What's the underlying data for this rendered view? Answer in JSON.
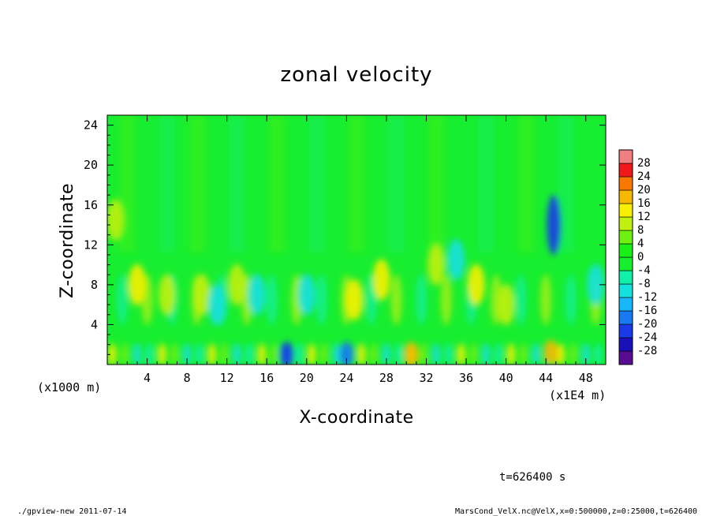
{
  "chart_data": {
    "type": "heatmap",
    "title": "zonal velocity",
    "xlabel": "X-coordinate",
    "ylabel": "Z-coordinate",
    "x_unit_left": "(x1000 m)",
    "x_unit_right": "(x1E4 m)",
    "x_ticks": [
      "4",
      "8",
      "12",
      "16",
      "20",
      "24",
      "28",
      "32",
      "36",
      "40",
      "44",
      "48"
    ],
    "x_tick_values": [
      4,
      8,
      12,
      16,
      20,
      24,
      28,
      32,
      36,
      40,
      44,
      48
    ],
    "xlim": [
      0,
      50
    ],
    "y_ticks": [
      "4",
      "8",
      "12",
      "16",
      "20",
      "24"
    ],
    "y_tick_values": [
      4,
      8,
      12,
      16,
      20,
      24
    ],
    "ylim": [
      0,
      25
    ],
    "colorbar": {
      "labels": [
        "28",
        "24",
        "20",
        "16",
        "12",
        "8",
        "4",
        "0",
        "-4",
        "-8",
        "-12",
        "-16",
        "-20",
        "-24",
        "-28"
      ],
      "min": -30,
      "max": 30,
      "colors": [
        "#5a0c90",
        "#1a10b8",
        "#1a3ae8",
        "#1a78f0",
        "#18b8f8",
        "#14e0e0",
        "#10f0a8",
        "#18ee30",
        "#18f018",
        "#70f010",
        "#c0f010",
        "#f8f000",
        "#f8b800",
        "#f87800",
        "#f01818",
        "#f08080"
      ]
    },
    "features": [
      {
        "x": 44.8,
        "z": 14.0,
        "value": -20
      },
      {
        "x": 44.5,
        "z": 1.2,
        "value": 18
      },
      {
        "x": 18.0,
        "z": 1.0,
        "value": -22
      },
      {
        "x": 24.0,
        "z": 1.0,
        "value": -18
      },
      {
        "x": 24.8,
        "z": 6.5,
        "value": 14
      },
      {
        "x": 27.5,
        "z": 8.5,
        "value": 12
      },
      {
        "x": 30.5,
        "z": 1.0,
        "value": 16
      },
      {
        "x": 0.8,
        "z": 14.5,
        "value": 10
      },
      {
        "x": 3.0,
        "z": 8.0,
        "value": 12
      },
      {
        "x": 6.0,
        "z": 7.0,
        "value": 10
      },
      {
        "x": 9.5,
        "z": 7.0,
        "value": 10
      },
      {
        "x": 13.0,
        "z": 8.0,
        "value": 11
      },
      {
        "x": 37.0,
        "z": 8.0,
        "value": 12
      },
      {
        "x": 33.0,
        "z": 10.0,
        "value": 9
      },
      {
        "x": 40.0,
        "z": 6.0,
        "value": 10
      },
      {
        "x": 35.0,
        "z": 10.5,
        "value": -8
      },
      {
        "x": 20.0,
        "z": 7.0,
        "value": -8
      },
      {
        "x": 11.0,
        "z": 6.0,
        "value": -9
      },
      {
        "x": 15.0,
        "z": 7.0,
        "value": -8
      },
      {
        "x": 49.0,
        "z": 8.0,
        "value": -8
      }
    ]
  },
  "footer": {
    "time_label": "t=626400 s",
    "left_info": "./gpview-new  2011-07-14",
    "right_info": "MarsCond_VelX.nc@VelX,x=0:500000,z=0:25000,t=626400"
  }
}
